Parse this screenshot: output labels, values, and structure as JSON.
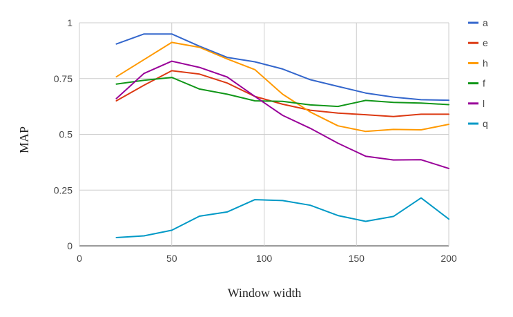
{
  "chart_data": {
    "type": "line",
    "title": "",
    "xlabel": "Window width",
    "ylabel": "MAP",
    "xlim": [
      0,
      200
    ],
    "ylim": [
      0,
      1
    ],
    "x_ticks": [
      0,
      50,
      100,
      150,
      200
    ],
    "x_tick_labels": [
      "0",
      "50",
      "100",
      "150",
      "200"
    ],
    "y_ticks": [
      0,
      0.25,
      0.5,
      0.75,
      1
    ],
    "y_tick_labels": [
      "0",
      "0.25",
      "0.5",
      "0.75",
      "1"
    ],
    "grid": true,
    "legend_position": "right",
    "x": [
      20,
      35,
      50,
      65,
      80,
      95,
      110,
      125,
      140,
      155,
      170,
      185,
      200
    ],
    "series": [
      {
        "name": "a",
        "color": "#3366cc",
        "values": [
          0.905,
          0.95,
          0.95,
          0.895,
          0.845,
          0.825,
          0.793,
          0.745,
          0.715,
          0.685,
          0.667,
          0.655,
          0.653
        ]
      },
      {
        "name": "e",
        "color": "#dc3912",
        "values": [
          0.65,
          0.72,
          0.785,
          0.77,
          0.73,
          0.67,
          0.635,
          0.608,
          0.595,
          0.588,
          0.58,
          0.59,
          0.59
        ]
      },
      {
        "name": "h",
        "color": "#ff9900",
        "values": [
          0.758,
          0.835,
          0.912,
          0.89,
          0.838,
          0.79,
          0.68,
          0.6,
          0.538,
          0.513,
          0.522,
          0.52,
          0.545
        ]
      },
      {
        "name": "f",
        "color": "#109618",
        "values": [
          0.725,
          0.742,
          0.755,
          0.703,
          0.68,
          0.65,
          0.648,
          0.632,
          0.625,
          0.652,
          0.643,
          0.64,
          0.633
        ]
      },
      {
        "name": "l",
        "color": "#990099",
        "values": [
          0.66,
          0.773,
          0.828,
          0.8,
          0.757,
          0.67,
          0.585,
          0.527,
          0.46,
          0.402,
          0.385,
          0.386,
          0.347
        ]
      },
      {
        "name": "q",
        "color": "#0099c6",
        "values": [
          0.037,
          0.045,
          0.07,
          0.133,
          0.152,
          0.207,
          0.203,
          0.182,
          0.136,
          0.11,
          0.132,
          0.215,
          0.12
        ]
      }
    ]
  }
}
